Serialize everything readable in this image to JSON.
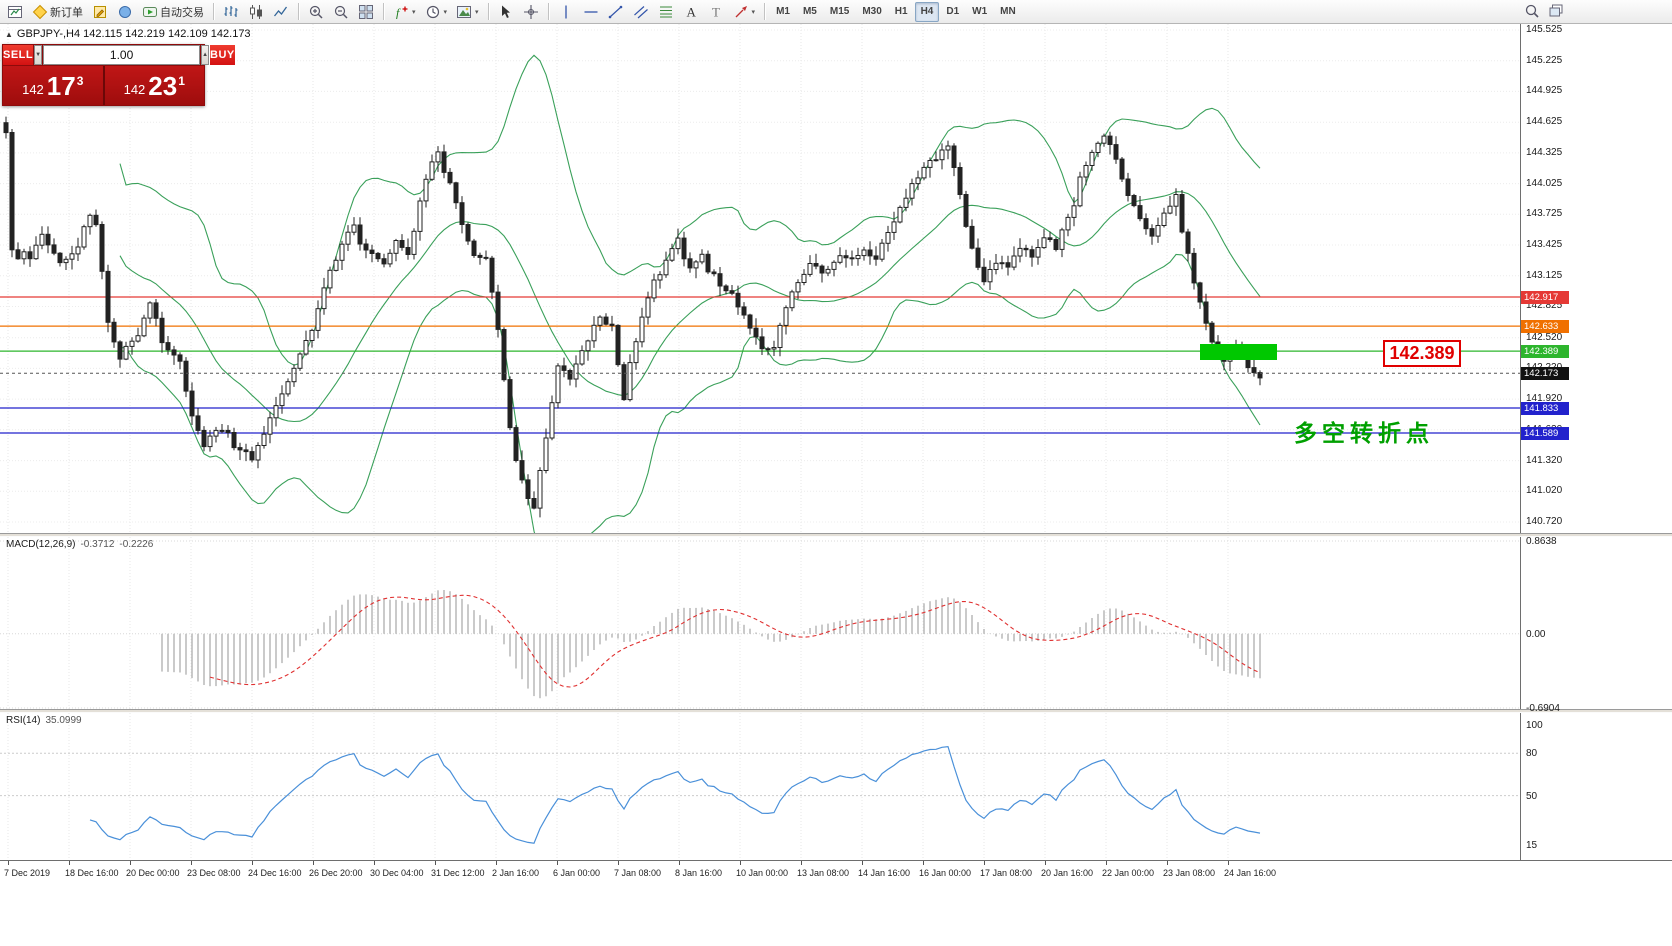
{
  "colors": {
    "toolbar_bg": "#ececec",
    "band_green": "#3aa05a",
    "bull_candle": "#ffffff",
    "bear_candle": "#222222",
    "macd_hist": "#b4b4b4",
    "macd_signal": "#e03030",
    "rsi_line": "#4a90d9",
    "highlight_green": "#00c800",
    "annotation_green": "#00a000",
    "callout_red": "#e00000",
    "trade_button_red": "#d31212",
    "trade_panel_red": "#a80f0f"
  },
  "toolbar": {
    "caret_glyph": "▾",
    "groups": [
      {
        "items": [
          {
            "name": "chart-window-button",
            "icon": "chart-window"
          },
          {
            "name": "new-order-button",
            "icon": "new-order",
            "label": "新订单"
          },
          {
            "name": "metaeditor-button",
            "icon": "metaeditor"
          },
          {
            "name": "market-watch-button",
            "icon": "market"
          },
          {
            "name": "autotrading-button",
            "icon": "autotrading",
            "label": "自动交易"
          }
        ]
      },
      {
        "items": [
          {
            "name": "ohlc-bars-button",
            "icon": "bars"
          },
          {
            "name": "candlestick-chart-button",
            "icon": "candles"
          },
          {
            "name": "line-chart-button",
            "icon": "linechart"
          }
        ]
      },
      {
        "items": [
          {
            "name": "zoom-in-button",
            "icon": "zoom-in"
          },
          {
            "name": "zoom-out-button",
            "icon": "zoom-out"
          },
          {
            "name": "tile-windows-button",
            "icon": "tile"
          }
        ]
      },
      {
        "items": [
          {
            "name": "indicators-button",
            "icon": "indicators",
            "dropdown": true
          },
          {
            "name": "periods-button",
            "icon": "periods",
            "dropdown": true
          },
          {
            "name": "templates-button",
            "icon": "templates",
            "dropdown": true
          }
        ]
      },
      {
        "items": [
          {
            "name": "cursor-button",
            "icon": "cursor"
          },
          {
            "name": "crosshair-button",
            "icon": "crosshair"
          }
        ]
      },
      {
        "items": [
          {
            "name": "vertical-line-button",
            "icon": "vline"
          },
          {
            "name": "horizontal-line-button",
            "icon": "hline"
          },
          {
            "name": "trendline-button",
            "icon": "trend"
          },
          {
            "name": "channel-button",
            "icon": "channel"
          },
          {
            "name": "fibonacci-button",
            "icon": "fibo"
          },
          {
            "name": "text-button",
            "icon": "text"
          },
          {
            "name": "text-label-button",
            "icon": "label"
          },
          {
            "name": "arrows-button",
            "icon": "arrows",
            "dropdown": true
          }
        ]
      },
      {
        "items": [
          {
            "name": "timeframe-m1-button",
            "tf": "M1"
          },
          {
            "name": "timeframe-m5-button",
            "tf": "M5"
          },
          {
            "name": "timeframe-m15-button",
            "tf": "M15"
          },
          {
            "name": "timeframe-m30-button",
            "tf": "M30"
          },
          {
            "name": "timeframe-h1-button",
            "tf": "H1"
          },
          {
            "name": "timeframe-h4-button",
            "tf": "H4",
            "active": true
          },
          {
            "name": "timeframe-d1-button",
            "tf": "D1"
          },
          {
            "name": "timeframe-w1-button",
            "tf": "W1"
          },
          {
            "name": "timeframe-mn-button",
            "tf": "MN"
          }
        ]
      }
    ],
    "right_items": [
      {
        "name": "search-button",
        "icon": "search"
      },
      {
        "name": "new-window-button",
        "icon": "windows"
      }
    ]
  },
  "symbol_header": {
    "arrow": "▲",
    "text": "GBPJPY-,H4  142.115 142.219 142.109 142.173"
  },
  "trade_panel": {
    "sell_label": "SELL",
    "buy_label": "BUY",
    "lot_value": "1.00",
    "spin_down": "▼",
    "spin_up": "▲",
    "sell_small": "142",
    "sell_big": "17",
    "sell_sup": "3",
    "buy_small": "142",
    "buy_big": "23",
    "buy_sup": "1"
  },
  "annotations": {
    "callout_price": "142.389",
    "turning_point": "多空转折点",
    "highlight": {
      "x_start": 1200,
      "x_end": 1277,
      "price_top": 142.46,
      "price_bottom": 142.3
    }
  },
  "levels": [
    {
      "price": 142.917,
      "label": "142.917",
      "color": "#e53935"
    },
    {
      "price": 142.633,
      "label": "142.633",
      "color": "#f07000"
    },
    {
      "price": 142.389,
      "label": "142.389",
      "color": "#2db52d"
    },
    {
      "price": 142.173,
      "label": "142.173",
      "color": "#111111",
      "current": true
    },
    {
      "price": 141.833,
      "label": "141.833",
      "color": "#2222cc"
    },
    {
      "price": 141.589,
      "label": "141.589",
      "color": "#2222cc"
    }
  ],
  "price_axis": {
    "labels": [
      "145.525",
      "145.225",
      "144.925",
      "144.625",
      "144.325",
      "144.025",
      "143.725",
      "143.425",
      "143.125",
      "142.825",
      "142.520",
      "142.220",
      "141.920",
      "141.620",
      "141.320",
      "141.020",
      "140.720"
    ]
  },
  "indicators": {
    "macd": {
      "title": "MACD(12,26,9)",
      "value1": "-0.3712",
      "value2": "-0.2226",
      "axis_labels": [
        {
          "v": 0.8638,
          "t": "0.8638"
        },
        {
          "v": 0,
          "t": "0.00"
        },
        {
          "v": -0.6904,
          "t": "-0.6904"
        }
      ]
    },
    "rsi": {
      "title": "RSI(14)",
      "value": "35.0999",
      "axis_labels": [
        {
          "v": 100,
          "t": "100"
        },
        {
          "v": 80,
          "t": "80"
        },
        {
          "v": 50,
          "t": "50"
        },
        {
          "v": 15,
          "t": "15"
        }
      ],
      "levels": [
        80,
        50
      ]
    }
  },
  "time_axis": {
    "labels": [
      "7 Dec 2019",
      "18 Dec 16:00",
      "20 Dec 00:00",
      "23 Dec 08:00",
      "24 Dec 16:00",
      "26 Dec 20:00",
      "30 Dec 04:00",
      "31 Dec 12:00",
      "2 Jan 16:00",
      "6 Jan 00:00",
      "7 Jan 08:00",
      "8 Jan 16:00",
      "10 Jan 00:00",
      "13 Jan 08:00",
      "14 Jan 16:00",
      "16 Jan 00:00",
      "17 Jan 08:00",
      "20 Jan 16:00",
      "22 Jan 00:00",
      "23 Jan 08:00",
      "24 Jan 16:00"
    ]
  },
  "chart_data": {
    "type": "candlestick",
    "symbol": "GBPJPY-",
    "timeframe": "H4",
    "quote": {
      "open": 142.115,
      "high": 142.219,
      "low": 142.109,
      "close": 142.173
    },
    "ylim": [
      140.72,
      145.525
    ],
    "candle_count": 210,
    "overlays": {
      "bollinger": {
        "period": 20,
        "deviation": 2
      }
    },
    "macd_params": {
      "fast": 12,
      "slow": 26,
      "signal": 9
    },
    "rsi_params": {
      "period": 14
    },
    "price_path_keypoints": [
      [
        0,
        144.55
      ],
      [
        1,
        143.35
      ],
      [
        4,
        143.3
      ],
      [
        6,
        143.55
      ],
      [
        9,
        143.25
      ],
      [
        12,
        143.45
      ],
      [
        14,
        143.75
      ],
      [
        15,
        143.6
      ],
      [
        17,
        142.65
      ],
      [
        19,
        142.35
      ],
      [
        22,
        142.55
      ],
      [
        24,
        142.9
      ],
      [
        26,
        142.45
      ],
      [
        29,
        142.3
      ],
      [
        31,
        141.75
      ],
      [
        33,
        141.5
      ],
      [
        36,
        141.65
      ],
      [
        38,
        141.45
      ],
      [
        41,
        141.35
      ],
      [
        44,
        141.7
      ],
      [
        47,
        142.1
      ],
      [
        50,
        142.45
      ],
      [
        53,
        143.0
      ],
      [
        56,
        143.45
      ],
      [
        58,
        143.6
      ],
      [
        60,
        143.35
      ],
      [
        63,
        143.25
      ],
      [
        65,
        143.45
      ],
      [
        67,
        143.3
      ],
      [
        69,
        143.85
      ],
      [
        71,
        144.2
      ],
      [
        72,
        144.3
      ],
      [
        74,
        144.0
      ],
      [
        76,
        143.6
      ],
      [
        78,
        143.35
      ],
      [
        80,
        143.3
      ],
      [
        82,
        142.6
      ],
      [
        84,
        141.6
      ],
      [
        86,
        141.1
      ],
      [
        88,
        140.85
      ],
      [
        90,
        141.55
      ],
      [
        92,
        142.25
      ],
      [
        94,
        142.1
      ],
      [
        97,
        142.5
      ],
      [
        99,
        142.75
      ],
      [
        101,
        142.6
      ],
      [
        103,
        141.95
      ],
      [
        104,
        142.3
      ],
      [
        106,
        142.75
      ],
      [
        108,
        143.05
      ],
      [
        110,
        143.3
      ],
      [
        112,
        143.45
      ],
      [
        114,
        143.2
      ],
      [
        116,
        143.3
      ],
      [
        118,
        143.1
      ],
      [
        121,
        142.95
      ],
      [
        123,
        142.7
      ],
      [
        126,
        142.45
      ],
      [
        128,
        142.4
      ],
      [
        130,
        142.8
      ],
      [
        132,
        143.05
      ],
      [
        134,
        143.2
      ],
      [
        137,
        143.15
      ],
      [
        139,
        143.3
      ],
      [
        141,
        143.25
      ],
      [
        143,
        143.4
      ],
      [
        145,
        143.3
      ],
      [
        147,
        143.55
      ],
      [
        149,
        143.8
      ],
      [
        152,
        144.1
      ],
      [
        155,
        144.3
      ],
      [
        157,
        144.38
      ],
      [
        159,
        143.95
      ],
      [
        161,
        143.35
      ],
      [
        163,
        143.1
      ],
      [
        165,
        143.28
      ],
      [
        167,
        143.22
      ],
      [
        169,
        143.38
      ],
      [
        171,
        143.3
      ],
      [
        173,
        143.48
      ],
      [
        175,
        143.42
      ],
      [
        177,
        143.65
      ],
      [
        179,
        144.05
      ],
      [
        181,
        144.35
      ],
      [
        183,
        144.52
      ],
      [
        185,
        144.28
      ],
      [
        187,
        143.92
      ],
      [
        189,
        143.68
      ],
      [
        191,
        143.52
      ],
      [
        193,
        143.72
      ],
      [
        195,
        143.88
      ],
      [
        197,
        143.3
      ],
      [
        199,
        142.85
      ],
      [
        201,
        142.52
      ],
      [
        203,
        142.28
      ],
      [
        205,
        142.42
      ],
      [
        207,
        142.25
      ],
      [
        209,
        142.17
      ]
    ]
  }
}
